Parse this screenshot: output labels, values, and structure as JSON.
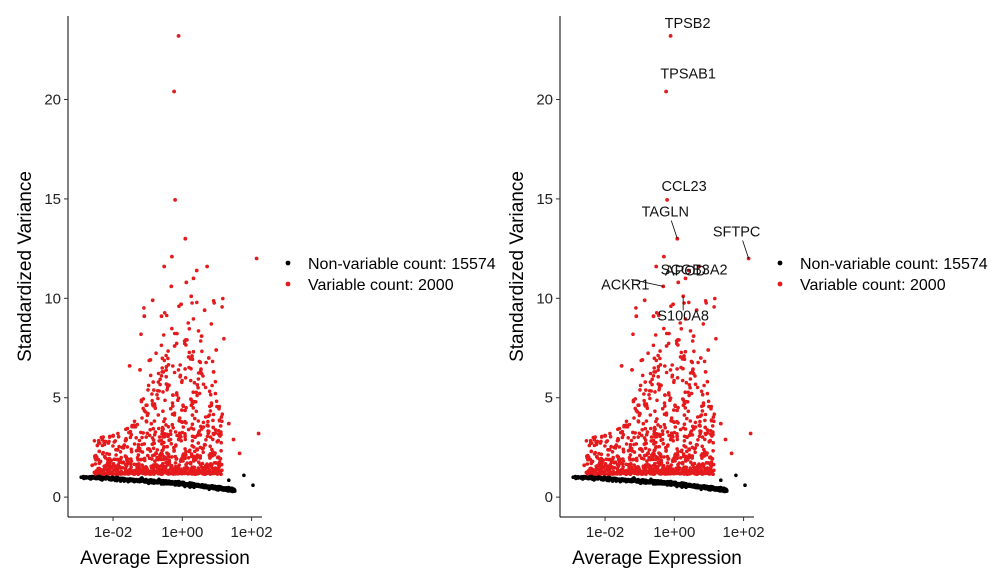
{
  "chart_data": [
    {
      "type": "scatter",
      "panel": "left",
      "title": "",
      "xlabel": "Average Expression",
      "ylabel": "Standardized Variance",
      "x_scale": "log10",
      "xlim": [
        0.0005,
        200
      ],
      "ylim": [
        -1,
        24.2
      ],
      "x_ticks": [
        {
          "value": 0.01,
          "label": "1e-02"
        },
        {
          "value": 1,
          "label": "1e+00"
        },
        {
          "value": 100,
          "label": "1e+02"
        }
      ],
      "y_ticks": [
        {
          "value": 0,
          "label": "0"
        },
        {
          "value": 5,
          "label": "5"
        },
        {
          "value": 10,
          "label": "10"
        },
        {
          "value": 15,
          "label": "15"
        },
        {
          "value": 20,
          "label": "20"
        }
      ],
      "legend": {
        "position": "right",
        "entries": [
          {
            "label": "Non-variable count: 15574",
            "color": "#000000"
          },
          {
            "label": "Variable count: 2000",
            "color": "#e41a1c"
          }
        ]
      },
      "series": [
        {
          "name": "Non-variable",
          "color": "#000000",
          "count": 15574,
          "sample_points": [
            [
              0.0012,
              1.0
            ],
            [
              0.0018,
              1.0
            ],
            [
              0.005,
              1.0
            ],
            [
              0.02,
              0.95
            ],
            [
              0.1,
              0.85
            ],
            [
              0.5,
              0.7
            ],
            [
              2,
              0.5
            ],
            [
              10,
              0.45
            ],
            [
              20,
              0.5
            ],
            [
              60,
              1.1
            ],
            [
              110,
              0.6
            ]
          ]
        },
        {
          "name": "Variable",
          "color": "#e41a1c",
          "count": 2000,
          "points": [
            [
              0.78,
              23.2
            ],
            [
              0.58,
              20.4
            ],
            [
              0.62,
              14.95
            ],
            [
              1.22,
              13.0
            ],
            [
              5.2,
              11.6
            ],
            [
              2.1,
              11.0
            ],
            [
              0.48,
              10.6
            ],
            [
              1.8,
              10.1
            ],
            [
              0.92,
              9.7
            ],
            [
              0.14,
              9.9
            ],
            [
              4.4,
              9.4
            ],
            [
              1.3,
              10.8
            ],
            [
              0.3,
              11.6
            ],
            [
              0.5,
              12.1
            ],
            [
              2.6,
              11.4
            ],
            [
              0.08,
              9.1
            ],
            [
              0.25,
              9.1
            ],
            [
              0.6,
              7.6
            ],
            [
              3.6,
              8.1
            ],
            [
              9.5,
              7.4
            ],
            [
              5.8,
              7.0
            ],
            [
              1.9,
              7.1
            ],
            [
              8.0,
              6.3
            ],
            [
              0.06,
              6.4
            ],
            [
              0.03,
              6.6
            ],
            [
              0.12,
              6.9
            ],
            [
              140,
              12.0
            ],
            [
              160,
              3.2
            ],
            [
              22,
              3.7
            ],
            [
              30,
              2.9
            ],
            [
              45,
              2.2
            ],
            [
              0.004,
              1.7
            ],
            [
              0.0025,
              1.6
            ],
            [
              0.004,
              2.3
            ],
            [
              0.006,
              2.8
            ],
            [
              0.01,
              3.1
            ]
          ]
        }
      ]
    },
    {
      "type": "scatter",
      "panel": "right",
      "title": "",
      "xlabel": "Average Expression",
      "ylabel": "Standardized Variance",
      "x_scale": "log10",
      "xlim": [
        0.0005,
        200
      ],
      "ylim": [
        -1,
        24.2
      ],
      "x_ticks": [
        {
          "value": 0.01,
          "label": "1e-02"
        },
        {
          "value": 1,
          "label": "1e+00"
        },
        {
          "value": 100,
          "label": "1e+02"
        }
      ],
      "y_ticks": [
        {
          "value": 0,
          "label": "0"
        },
        {
          "value": 5,
          "label": "5"
        },
        {
          "value": 10,
          "label": "10"
        },
        {
          "value": 15,
          "label": "15"
        },
        {
          "value": 20,
          "label": "20"
        }
      ],
      "legend": {
        "position": "right",
        "entries": [
          {
            "label": "Non-variable count: 15574",
            "color": "#000000"
          },
          {
            "label": "Variable count: 2000",
            "color": "#e41a1c"
          }
        ]
      },
      "annotations": [
        {
          "text": "TPSB2",
          "x": 0.78,
          "y": 23.2
        },
        {
          "text": "TPSAB1",
          "x": 0.58,
          "y": 20.4
        },
        {
          "text": "CCL23",
          "x": 0.62,
          "y": 14.95
        },
        {
          "text": "TAGLN",
          "x": 1.22,
          "y": 13.0
        },
        {
          "text": "SFTPC",
          "x": 140,
          "y": 12.0
        },
        {
          "text": "APOD",
          "x": 2.1,
          "y": 11.0
        },
        {
          "text": "SCGB3A2",
          "x": 5.2,
          "y": 11.6
        },
        {
          "text": "ACKR1",
          "x": 0.48,
          "y": 10.6
        },
        {
          "text": "S100A8",
          "x": 1.8,
          "y": 10.1
        }
      ]
    }
  ]
}
